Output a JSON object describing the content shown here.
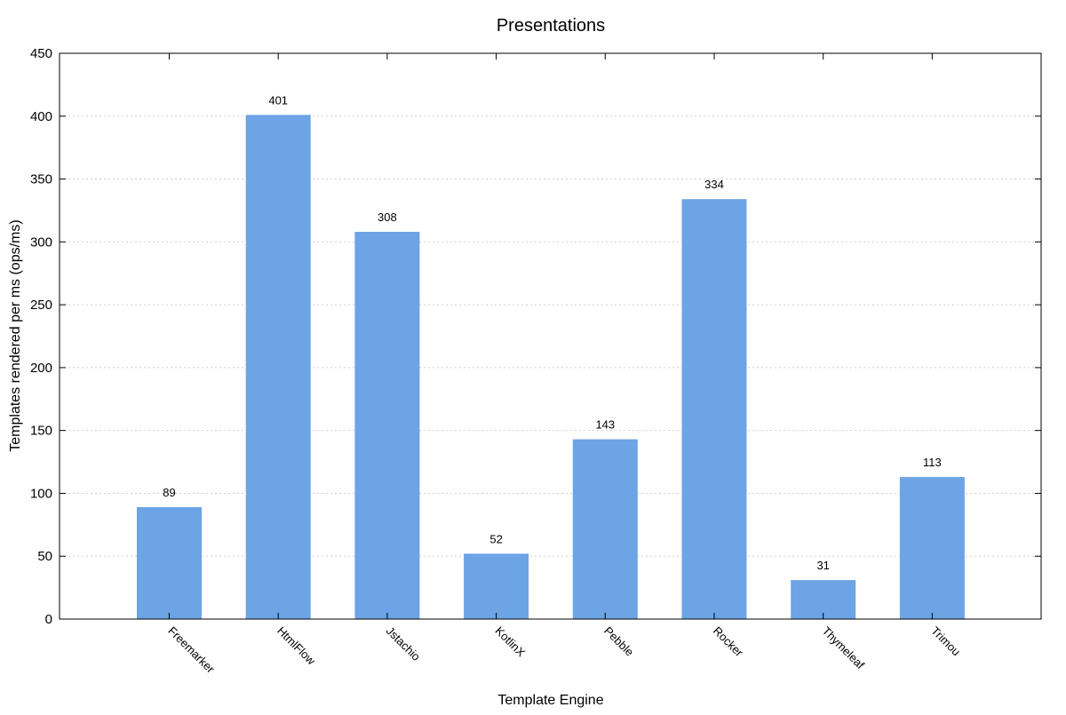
{
  "chart_data": {
    "type": "bar",
    "title": "Presentations",
    "xlabel": "Template Engine",
    "ylabel": "Templates rendered per ms (ops/ms)",
    "categories": [
      "Freemarker",
      "HtmlFlow",
      "Jstachio",
      "KotlinX",
      "Pebble",
      "Rocker",
      "Thymeleaf",
      "Trimou"
    ],
    "values": [
      89,
      401,
      308,
      52,
      143,
      334,
      31,
      113
    ],
    "data_labels": [
      "89",
      "401",
      "308",
      "52",
      "143",
      "334",
      "31",
      "113"
    ],
    "ylim": [
      0,
      450
    ],
    "yticks": [
      0,
      50,
      100,
      150,
      200,
      250,
      300,
      350,
      400,
      450
    ],
    "grid": true,
    "bar_color": "#6ca4e5",
    "legend": "none"
  }
}
